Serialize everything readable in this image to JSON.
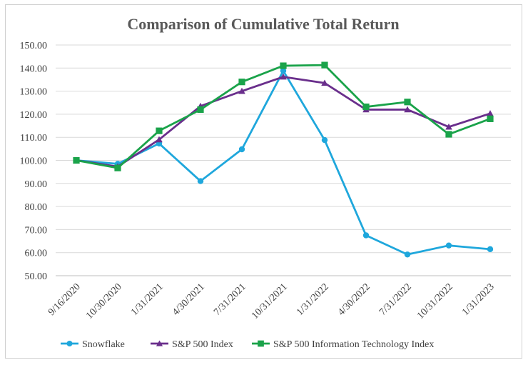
{
  "chart_data": {
    "type": "line",
    "title": "Comparison of Cumulative Total Return",
    "xlabel": "",
    "ylabel": "",
    "ylim": [
      50,
      150
    ],
    "yticks": [
      "50.00",
      "60.00",
      "70.00",
      "80.00",
      "90.00",
      "100.00",
      "110.00",
      "120.00",
      "130.00",
      "140.00",
      "150.00"
    ],
    "categories": [
      "9/16/2020",
      "10/30/2020",
      "1/31/2021",
      "4/30/2021",
      "7/31/2021",
      "10/31/2021",
      "1/31/2022",
      "4/30/2022",
      "7/31/2022",
      "10/31/2022",
      "1/31/2023"
    ],
    "grid": true,
    "legend_position": "bottom",
    "series": [
      {
        "name": "Snowflake",
        "color": "#1fa7dc",
        "marker": "circle",
        "values": [
          100.0,
          98.5,
          107.3,
          91.0,
          104.8,
          138.8,
          108.8,
          67.5,
          59.2,
          63.1,
          61.5
        ]
      },
      {
        "name": "S&P 500 Index",
        "color": "#6a2f8c",
        "marker": "triangle",
        "values": [
          100.0,
          97.3,
          109.0,
          123.5,
          130.0,
          136.2,
          133.5,
          122.0,
          122.0,
          114.5,
          120.3
        ]
      },
      {
        "name": "S&P 500 Information Technology Index",
        "color": "#1aa34a",
        "marker": "square",
        "values": [
          100.0,
          96.7,
          112.8,
          122.0,
          134.0,
          141.0,
          141.3,
          123.2,
          125.3,
          111.3,
          118.0
        ]
      }
    ]
  }
}
